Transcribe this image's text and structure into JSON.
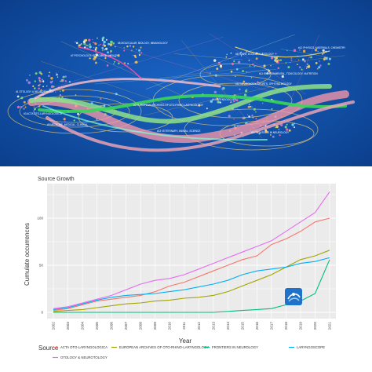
{
  "overlay_map": {
    "background": "#0f4fa8",
    "visible_labels": [
      "#1 OTOLOGY & NEUROTOLOGY",
      "#2 EUROPEAN ARCHIVES OF OTO-RHINO-LARYNGOLOGY",
      "#3 ACTA OTO-LARYNGOLOGICA",
      "#4 LARYNGOSCOPE",
      "#5 FRONTIERS IN NEUROLOGY",
      "#6 PLANT, ECOLOGY, ZOOLOGY",
      "#7 PSYCHOLOGY, EDUCATION, HEALTH",
      "#8 MOLECULAR, BIOLOGY, IMMUNOLOGY",
      "#9 MEDICINE, MEDICAL, CLINICAL",
      "#10 NEUROLOGY, SPORTS, OPHTHALMOLOGY",
      "#11 ENVIRONMENTAL, TOXICOLOGY, NUTRITION",
      "#12 PHYSICS, MATERIALS, CHEMISTRY",
      "#13 VETERINARY, ANIMAL, SCIENCE"
    ]
  },
  "chart_data": {
    "type": "line",
    "title": "Source Growth",
    "xlabel": "Year",
    "ylabel": "Cumulate occurrences",
    "x": [
      2002,
      2003,
      2004,
      2005,
      2006,
      2007,
      2008,
      2009,
      2010,
      2011,
      2012,
      2013,
      2014,
      2015,
      2016,
      2017,
      2018,
      2019,
      2020,
      2021
    ],
    "xlim": [
      2002,
      2021
    ],
    "ylim": [
      0,
      130
    ],
    "yticks": [
      0,
      50,
      100
    ],
    "legend_title": "Source",
    "legend_position": "bottom",
    "grid": true,
    "series": [
      {
        "name": "ACTA OTO-LARYNGOLOGICA",
        "color": "#f8766d",
        "values": [
          2,
          4,
          8,
          12,
          14,
          16,
          18,
          22,
          28,
          32,
          38,
          44,
          50,
          56,
          60,
          72,
          78,
          86,
          96,
          100
        ]
      },
      {
        "name": "EUROPEAN ARCHIVES OF OTO-RHINO-LARYNGOLOGY",
        "color": "#a3a500",
        "values": [
          1,
          2,
          3,
          5,
          7,
          9,
          10,
          12,
          13,
          15,
          16,
          18,
          22,
          28,
          34,
          40,
          48,
          56,
          60,
          66
        ]
      },
      {
        "name": "FRONTIERS IN NEUROLOGY",
        "color": "#00bf7d",
        "values": [
          0,
          0,
          0,
          0,
          0,
          0,
          0,
          0,
          0,
          0,
          0,
          0,
          1,
          2,
          3,
          4,
          8,
          12,
          20,
          56
        ]
      },
      {
        "name": "LARYNGOSCOPE",
        "color": "#00b0f6",
        "values": [
          3,
          5,
          9,
          13,
          16,
          18,
          19,
          20,
          22,
          24,
          27,
          30,
          34,
          40,
          44,
          46,
          48,
          52,
          54,
          58
        ]
      },
      {
        "name": "OTOLOGY & NEUROTOLOGY",
        "color": "#e76bf3",
        "values": [
          4,
          6,
          10,
          14,
          18,
          24,
          30,
          34,
          36,
          40,
          46,
          52,
          58,
          64,
          70,
          76,
          86,
          96,
          106,
          128
        ]
      }
    ]
  }
}
